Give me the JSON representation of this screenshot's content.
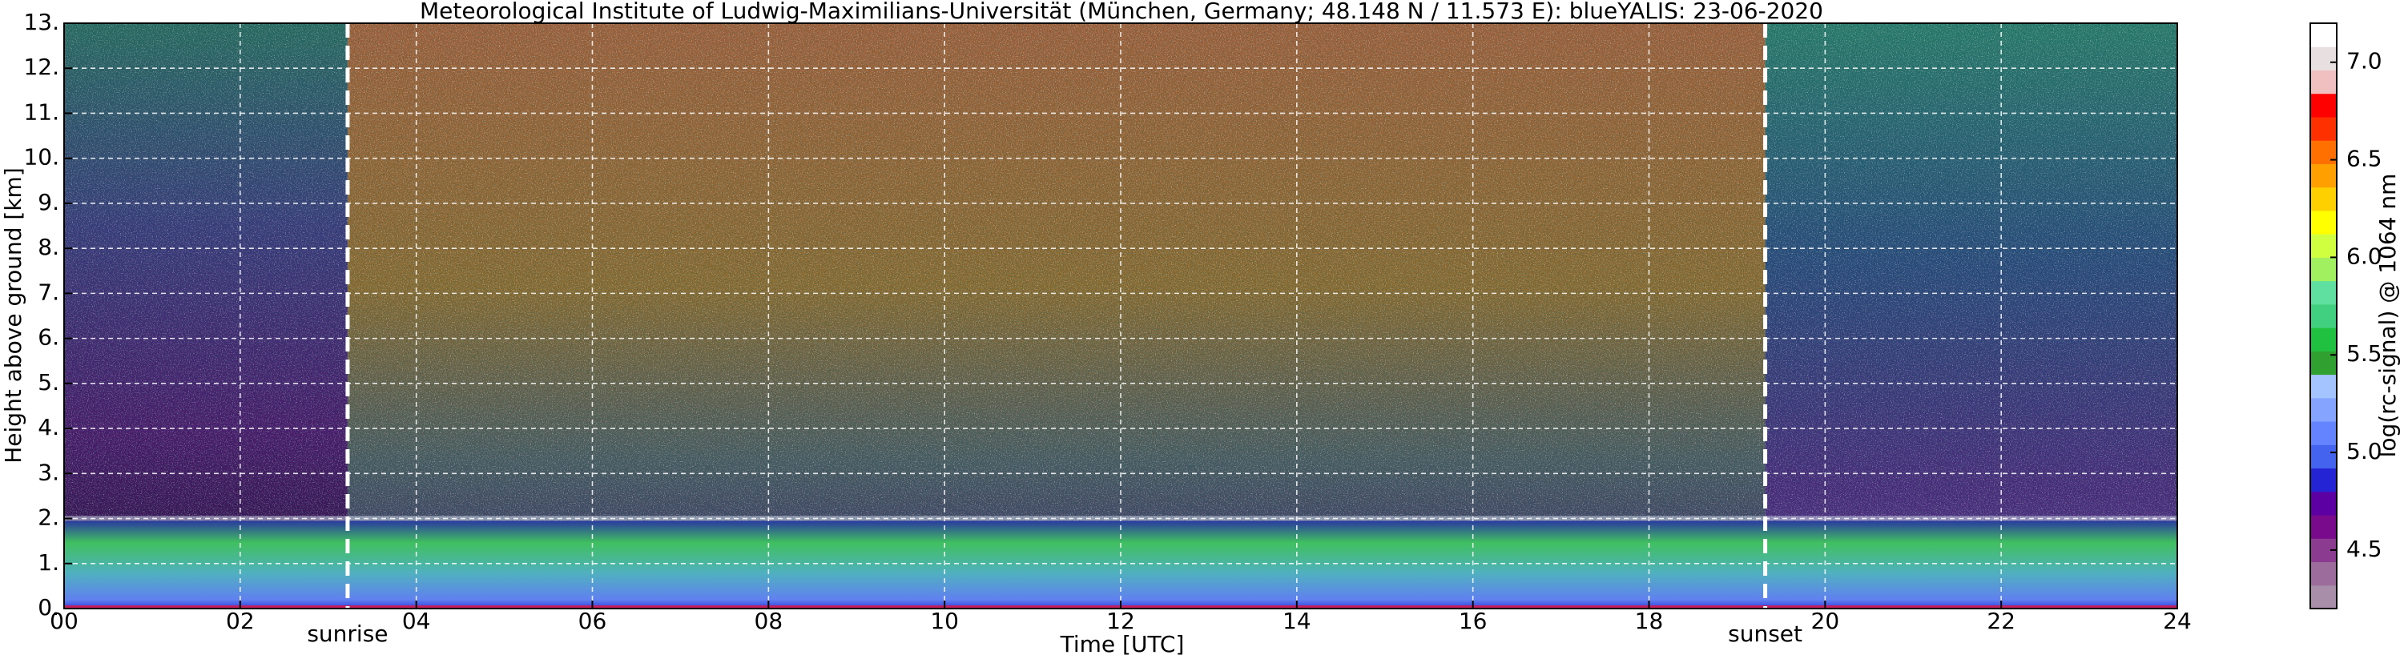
{
  "chart_data": {
    "type": "heatmap",
    "title": "Meteorological Institute of Ludwig-Maximilians-Universität (München, Germany; 48.148 N / 11.573 E):    blueYALIS: 23-06-2020",
    "xlabel": "Time [UTC]",
    "ylabel": "Height above ground [km]",
    "xlim": [
      0,
      24
    ],
    "xticks": [
      {
        "value": 0,
        "label": "00"
      },
      {
        "value": 2,
        "label": "02"
      },
      {
        "value": 4,
        "label": "04"
      },
      {
        "value": 6,
        "label": "06"
      },
      {
        "value": 8,
        "label": "08"
      },
      {
        "value": 10,
        "label": "10"
      },
      {
        "value": 12,
        "label": "12"
      },
      {
        "value": 14,
        "label": "14"
      },
      {
        "value": 16,
        "label": "16"
      },
      {
        "value": 18,
        "label": "18"
      },
      {
        "value": 20,
        "label": "20"
      },
      {
        "value": 22,
        "label": "22"
      },
      {
        "value": 24,
        "label": "24"
      }
    ],
    "ylim": [
      0,
      13
    ],
    "yticks": [
      {
        "value": 0,
        "label": "0."
      },
      {
        "value": 1,
        "label": "1."
      },
      {
        "value": 2,
        "label": "2."
      },
      {
        "value": 3,
        "label": "3."
      },
      {
        "value": 4,
        "label": "4."
      },
      {
        "value": 5,
        "label": "5."
      },
      {
        "value": 6,
        "label": "6."
      },
      {
        "value": 7,
        "label": "7."
      },
      {
        "value": 8,
        "label": "8."
      },
      {
        "value": 9,
        "label": "9."
      },
      {
        "value": 10,
        "label": "10."
      },
      {
        "value": 11,
        "label": "11."
      },
      {
        "value": 12,
        "label": "12."
      },
      {
        "value": 13,
        "label": "13."
      }
    ],
    "grid": true,
    "annotations": [
      {
        "text": "sunrise",
        "x": 3.22
      },
      {
        "text": "sunset",
        "x": 19.32
      }
    ],
    "colorbar": {
      "label": "log(rc-signal) @ 1064 nm",
      "lim": [
        4.2,
        7.2
      ],
      "ticks": [
        4.5,
        {
          "value": 5.0,
          "label": "5.0"
        },
        5.5,
        {
          "value": 6.0,
          "label": "6.0"
        },
        6.5,
        {
          "value": 7.0,
          "label": "7.0"
        }
      ],
      "colors": [
        "#a88ea8",
        "#9c6c9c",
        "#8c3c90",
        "#7a0a8c",
        "#5c00a4",
        "#2424d4",
        "#4464f0",
        "#6484ff",
        "#84a4ff",
        "#a4c4ff",
        "#30a030",
        "#20c040",
        "#40d080",
        "#60e0a0",
        "#a0f060",
        "#d0ff40",
        "#ffff00",
        "#ffd000",
        "#ffa000",
        "#ff7000",
        "#ff3000",
        "#ff0000",
        "#f0c0c0",
        "#e8e0e0",
        "#ffffff"
      ]
    }
  }
}
